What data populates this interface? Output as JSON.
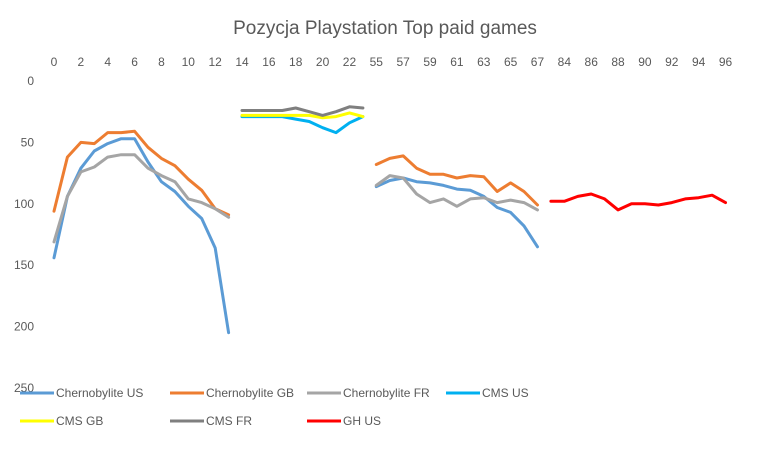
{
  "chart_data": {
    "type": "line",
    "title": "Pozycja Playstation Top paid games",
    "xlabel": "",
    "ylabel": "",
    "y_reversed": true,
    "ylim": [
      0,
      250
    ],
    "y_ticks": [
      0,
      50,
      100,
      150,
      200,
      250
    ],
    "x_tick_labels": [
      "0",
      "2",
      "4",
      "6",
      "8",
      "10",
      "12",
      "14",
      "16",
      "18",
      "20",
      "22",
      "55",
      "57",
      "59",
      "61",
      "63",
      "65",
      "67",
      "84",
      "86",
      "88",
      "90",
      "92",
      "94",
      "96"
    ],
    "grid": false,
    "legend_position": "bottom",
    "groups": [
      {
        "x_start": 0,
        "x_end": 13
      },
      {
        "x_start": 14,
        "x_end": 23
      },
      {
        "x_start": 55,
        "x_end": 67
      },
      {
        "x_start": 84,
        "x_end": 97
      }
    ],
    "series": [
      {
        "name": "Chernobylite US",
        "color": "#5B9BD5",
        "segments": [
          {
            "x_start": 0,
            "values": [
              144,
              94,
              71,
              57,
              51,
              47,
              47,
              66,
              82,
              90,
              102,
              112,
              136,
              205
            ]
          },
          {
            "x_start": 55,
            "values": [
              86,
              81,
              79,
              82,
              83,
              85,
              88,
              89,
              94,
              103,
              107,
              118,
              135,
              150
            ]
          }
        ]
      },
      {
        "name": "Chernobylite GB",
        "color": "#ED7D31",
        "segments": [
          {
            "x_start": 0,
            "values": [
              106,
              62,
              50,
              51,
              42,
              42,
              41,
              54,
              63,
              69,
              80,
              89,
              104,
              109
            ]
          },
          {
            "x_start": 55,
            "values": [
              68,
              63,
              61,
              71,
              76,
              76,
              79,
              77,
              78,
              90,
              83,
              90,
              101,
              107
            ]
          }
        ]
      },
      {
        "name": "Chernobylite FR",
        "color": "#A5A5A5",
        "segments": [
          {
            "x_start": 0,
            "values": [
              131,
              94,
              74,
              70,
              62,
              60,
              60,
              71,
              77,
              82,
              96,
              99,
              104,
              111
            ]
          },
          {
            "x_start": 55,
            "values": [
              85,
              77,
              79,
              92,
              99,
              96,
              102,
              96,
              95,
              99,
              97,
              99,
              105,
              120
            ]
          }
        ]
      },
      {
        "name": "CMS US",
        "color": "#00B0F0",
        "segments": [
          {
            "x_start": 14,
            "values": [
              29,
              29,
              29,
              29,
              31,
              33,
              38,
              42,
              34,
              29
            ]
          }
        ]
      },
      {
        "name": "CMS GB",
        "color": "#FFFF00",
        "segments": [
          {
            "x_start": 14,
            "values": [
              28,
              28,
              28,
              28,
              28,
              28,
              30,
              29,
              26,
              29
            ]
          }
        ]
      },
      {
        "name": "CMS FR",
        "color": "#7F7F7F",
        "segments": [
          {
            "x_start": 14,
            "values": [
              24,
              24,
              24,
              24,
              22,
              25,
              28,
              25,
              21,
              22
            ]
          }
        ]
      },
      {
        "name": "GH US",
        "color": "#FF0000",
        "segments": [
          {
            "x_start": 84,
            "values": [
              98,
              98,
              94,
              92,
              96,
              105,
              100,
              100,
              101,
              99,
              96,
              95,
              93,
              99
            ]
          }
        ]
      }
    ]
  }
}
